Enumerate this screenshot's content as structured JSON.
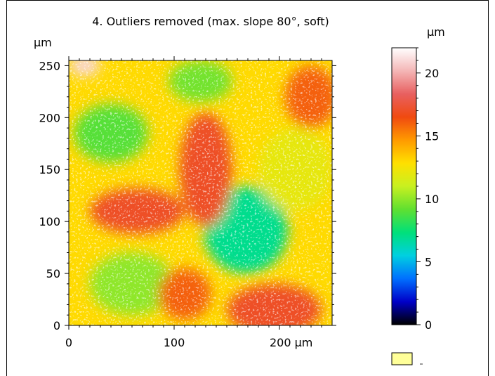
{
  "chart_data": {
    "type": "heatmap",
    "title": "4. Outliers removed (max. slope 80°, soft)",
    "x_unit": "µm",
    "y_unit": "µm",
    "colorbar_unit": "µm",
    "xlim": [
      0,
      250
    ],
    "ylim": [
      0,
      255
    ],
    "x_ticks": [
      "0",
      "100",
      "200 µm"
    ],
    "y_ticks": [
      "0",
      "50",
      "100",
      "150",
      "200",
      "250"
    ],
    "colorbar_range": [
      0,
      22
    ],
    "colorbar_ticks": [
      "0",
      "5",
      "10",
      "15",
      "20"
    ],
    "colormap": [
      "#000000",
      "#0000c8",
      "#0070ff",
      "#00d0e0",
      "#00e07a",
      "#60e030",
      "#c8f020",
      "#ffe000",
      "#ff9a00",
      "#f04a10",
      "#e86060",
      "#f4b6b6",
      "#ffffff"
    ],
    "surface_blobs": [
      {
        "x": 170,
        "y": 88,
        "rx": 28,
        "ry": 30,
        "z": 3
      },
      {
        "x": 168,
        "y": 92,
        "rx": 40,
        "ry": 42,
        "z": 7
      },
      {
        "x": 40,
        "y": 185,
        "rx": 35,
        "ry": 28,
        "z": 9
      },
      {
        "x": 125,
        "y": 235,
        "rx": 30,
        "ry": 20,
        "z": 9.5
      },
      {
        "x": 60,
        "y": 40,
        "rx": 40,
        "ry": 30,
        "z": 10
      },
      {
        "x": 215,
        "y": 150,
        "rx": 35,
        "ry": 40,
        "z": 12
      },
      {
        "x": 130,
        "y": 150,
        "rx": 25,
        "ry": 55,
        "z": 17
      },
      {
        "x": 65,
        "y": 110,
        "rx": 45,
        "ry": 22,
        "z": 17
      },
      {
        "x": 195,
        "y": 15,
        "rx": 45,
        "ry": 25,
        "z": 17
      },
      {
        "x": 110,
        "y": 30,
        "rx": 25,
        "ry": 25,
        "z": 16
      },
      {
        "x": 15,
        "y": 250,
        "rx": 15,
        "ry": 10,
        "z": 21
      },
      {
        "x": 230,
        "y": 220,
        "rx": 25,
        "ry": 30,
        "z": 16
      }
    ],
    "surface_base_z": 13
  },
  "colors": {
    "frame": "#000000",
    "legend_swatch": "#ffff99"
  }
}
